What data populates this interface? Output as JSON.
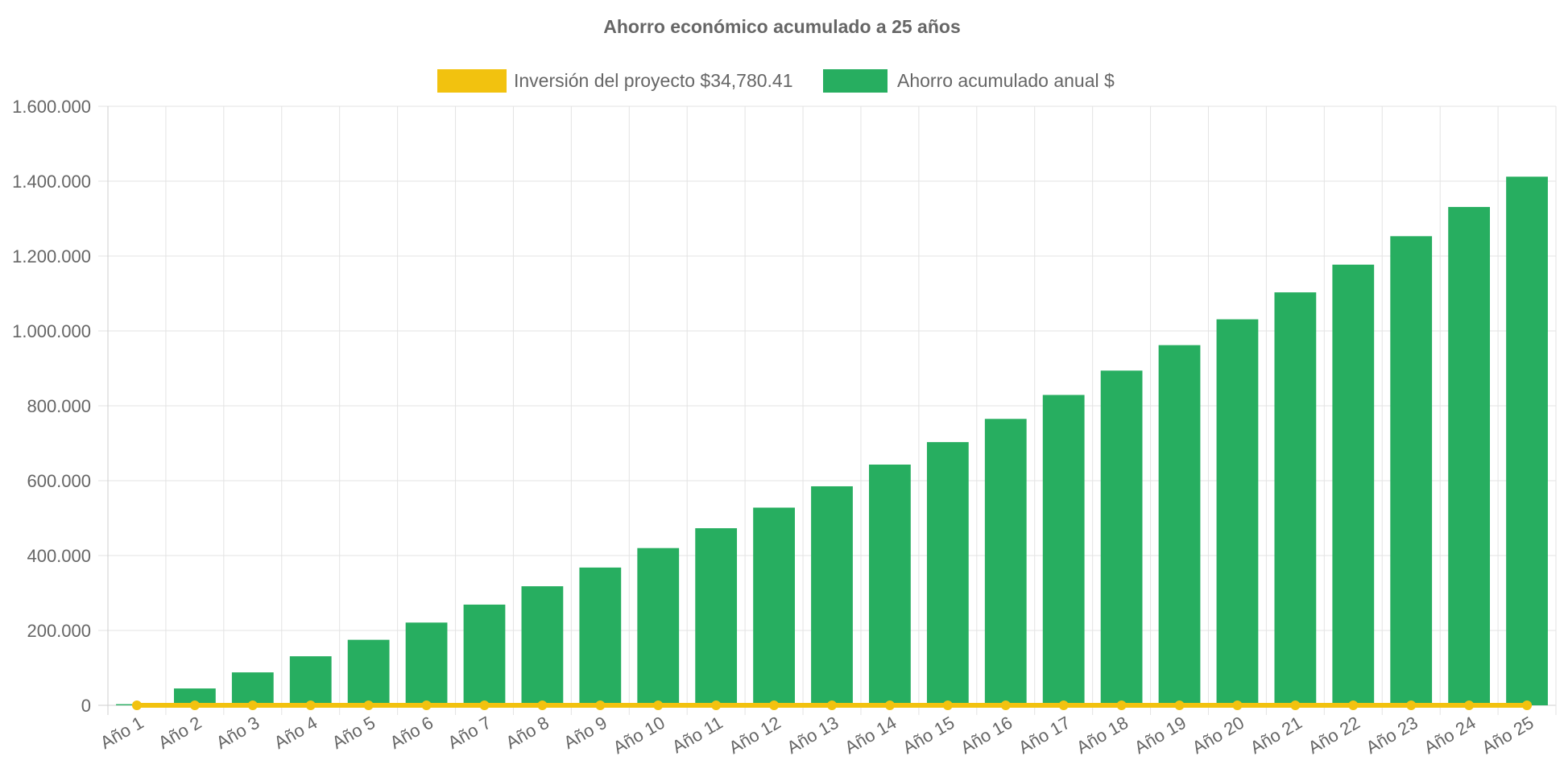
{
  "chart_data": {
    "type": "bar",
    "title": "Ahorro económico acumulado a 25 años",
    "xlabel": "",
    "ylabel": "",
    "ylim": [
      0,
      1600000
    ],
    "y_ticks": [
      0,
      200000,
      400000,
      600000,
      800000,
      1000000,
      1200000,
      1400000,
      1600000
    ],
    "y_tick_labels": [
      "0",
      "200.000",
      "400.000",
      "600.000",
      "800.000",
      "1.000.000",
      "1.200.000",
      "1.400.000",
      "1.600.000"
    ],
    "grid": true,
    "legend_position": "top-center",
    "categories": [
      "Año 1",
      "Año 2",
      "Año 3",
      "Año 4",
      "Año 5",
      "Año 6",
      "Año 7",
      "Año 8",
      "Año 9",
      "Año 10",
      "Año 11",
      "Año 12",
      "Año 13",
      "Año 14",
      "Año 15",
      "Año 16",
      "Año 17",
      "Año 18",
      "Año 19",
      "Año 20",
      "Año 21",
      "Año 22",
      "Año 23",
      "Año 24",
      "Año 25"
    ],
    "series": [
      {
        "name": "Inversión del proyecto $34,780.41",
        "type": "line",
        "color": "#f2c20f",
        "values": [
          0,
          0,
          0,
          0,
          0,
          0,
          0,
          0,
          0,
          0,
          0,
          0,
          0,
          0,
          0,
          0,
          0,
          0,
          0,
          0,
          0,
          0,
          0,
          0,
          0
        ]
      },
      {
        "name": "Ahorro acumulado anual $",
        "type": "bar",
        "color": "#27ae60",
        "values": [
          3000,
          45000,
          88000,
          131000,
          175000,
          221000,
          269000,
          318000,
          368000,
          420000,
          473000,
          528000,
          585000,
          643000,
          703000,
          765000,
          829000,
          894000,
          962000,
          1031000,
          1103000,
          1177000,
          1253000,
          1331000,
          1412000
        ]
      }
    ]
  }
}
